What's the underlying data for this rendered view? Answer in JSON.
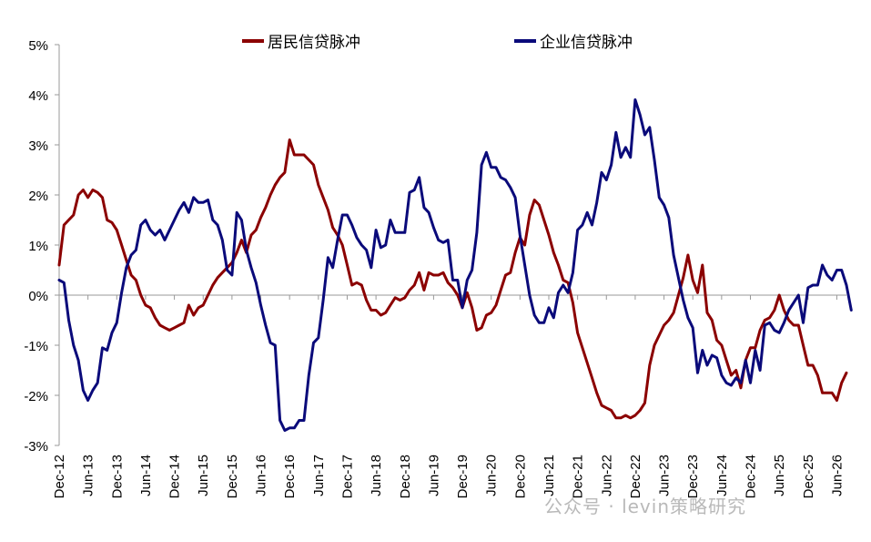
{
  "chart_data": {
    "type": "line",
    "title": "",
    "xlabel": "",
    "ylabel": "",
    "ylim": [
      -3,
      5
    ],
    "y_ticks": [
      "5%",
      "4%",
      "3%",
      "2%",
      "1%",
      "0%",
      "-1%",
      "-2%",
      "-3%"
    ],
    "x_ticks": [
      "Dec-12",
      "Jun-13",
      "Dec-13",
      "Jun-14",
      "Dec-14",
      "Jun-15",
      "Dec-15",
      "Jun-16",
      "Dec-16",
      "Jun-17",
      "Dec-17",
      "Jun-18",
      "Dec-18",
      "Jun-19",
      "Dec-19",
      "Jun-20",
      "Dec-20",
      "Jun-21",
      "Dec-21",
      "Jun-22",
      "Dec-22",
      "Jun-23",
      "Dec-23",
      "Jun-24",
      "Dec-24",
      "Jun-25",
      "Dec-25",
      "Jun-26"
    ],
    "legend_position": "top",
    "grid": false,
    "x_start": "Dec-12",
    "x_step": "1 month",
    "series": [
      {
        "name": "居民信贷脉冲",
        "color": "#8B0000",
        "values": [
          0.6,
          1.4,
          1.5,
          1.6,
          2.0,
          2.1,
          1.95,
          2.1,
          2.05,
          1.95,
          1.5,
          1.45,
          1.3,
          1.0,
          0.7,
          0.4,
          0.3,
          0.0,
          -0.2,
          -0.25,
          -0.45,
          -0.6,
          -0.65,
          -0.7,
          -0.65,
          -0.6,
          -0.55,
          -0.2,
          -0.4,
          -0.25,
          -0.2,
          0.0,
          0.2,
          0.35,
          0.45,
          0.55,
          0.65,
          0.85,
          1.1,
          0.85,
          1.2,
          1.3,
          1.55,
          1.75,
          2.0,
          2.2,
          2.35,
          2.45,
          3.1,
          2.8,
          2.8,
          2.8,
          2.7,
          2.6,
          2.2,
          1.95,
          1.7,
          1.35,
          1.2,
          1.0,
          0.6,
          0.2,
          0.25,
          0.2,
          -0.1,
          -0.3,
          -0.3,
          -0.4,
          -0.35,
          -0.2,
          -0.05,
          -0.1,
          -0.05,
          0.1,
          0.2,
          0.45,
          0.1,
          0.45,
          0.4,
          0.4,
          0.45,
          0.25,
          0.15,
          0.0,
          -0.25,
          0.05,
          -0.25,
          -0.7,
          -0.65,
          -0.4,
          -0.35,
          -0.2,
          0.1,
          0.4,
          0.45,
          0.85,
          1.15,
          1.0,
          1.6,
          1.9,
          1.8,
          1.5,
          1.2,
          0.85,
          0.6,
          0.3,
          0.25,
          -0.15,
          -0.75,
          -1.05,
          -1.35,
          -1.65,
          -1.95,
          -2.2,
          -2.25,
          -2.3,
          -2.45,
          -2.45,
          -2.4,
          -2.45,
          -2.4,
          -2.3,
          -2.15,
          -1.4,
          -1.0,
          -0.8,
          -0.6,
          -0.5,
          -0.35,
          0.0,
          0.35,
          0.8,
          0.3,
          0.05,
          0.6,
          -0.35,
          -0.5,
          -0.9,
          -1.0,
          -1.3,
          -1.6,
          -1.5,
          -1.85,
          -1.3,
          -1.05,
          -1.05,
          -0.7,
          -0.5,
          -0.45,
          -0.3,
          0.0,
          -0.3,
          -0.5,
          -0.6,
          -0.6,
          -1.0,
          -1.4,
          -1.4,
          -1.6,
          -1.95,
          -1.95,
          -1.95,
          -2.1,
          -1.75,
          -1.55
        ]
      },
      {
        "name": "企业信贷脉冲",
        "color": "#0A0A7A",
        "values": [
          0.3,
          0.25,
          -0.5,
          -1.0,
          -1.3,
          -1.9,
          -2.1,
          -1.9,
          -1.75,
          -1.05,
          -1.1,
          -0.75,
          -0.55,
          0.05,
          0.55,
          0.8,
          0.9,
          1.4,
          1.5,
          1.3,
          1.2,
          1.3,
          1.1,
          1.3,
          1.5,
          1.7,
          1.85,
          1.65,
          1.95,
          1.85,
          1.85,
          1.9,
          1.5,
          1.4,
          1.1,
          0.5,
          0.4,
          1.65,
          1.5,
          0.9,
          0.55,
          0.25,
          -0.2,
          -0.6,
          -0.95,
          -1.0,
          -2.5,
          -2.7,
          -2.65,
          -2.65,
          -2.5,
          -2.5,
          -1.6,
          -0.95,
          -0.85,
          -0.1,
          0.75,
          0.55,
          1.1,
          1.6,
          1.6,
          1.4,
          1.15,
          1.0,
          0.9,
          0.55,
          1.3,
          0.95,
          1.0,
          1.5,
          1.25,
          1.25,
          1.25,
          2.05,
          2.1,
          2.35,
          1.75,
          1.65,
          1.35,
          1.1,
          1.05,
          1.1,
          0.3,
          0.3,
          -0.25,
          0.3,
          0.5,
          1.25,
          2.6,
          2.85,
          2.55,
          2.55,
          2.35,
          2.3,
          2.15,
          1.95,
          1.2,
          0.6,
          0.0,
          -0.4,
          -0.55,
          -0.55,
          -0.25,
          -0.45,
          0.05,
          0.2,
          0.05,
          0.45,
          1.3,
          1.4,
          1.65,
          1.4,
          1.85,
          2.45,
          2.3,
          2.6,
          3.25,
          2.75,
          2.95,
          2.75,
          3.9,
          3.6,
          3.2,
          3.35,
          2.7,
          1.95,
          1.8,
          1.55,
          0.8,
          0.35,
          -0.1,
          -0.45,
          -0.65,
          -1.55,
          -1.1,
          -1.4,
          -1.2,
          -1.25,
          -1.6,
          -1.75,
          -1.8,
          -1.65,
          -1.75,
          -1.3,
          -1.75,
          -1.1,
          -1.5,
          -0.6,
          -0.55,
          -0.7,
          -0.75,
          -0.55,
          -0.3,
          -0.15,
          0.0,
          -0.55,
          0.15,
          0.2,
          0.2,
          0.6,
          0.4,
          0.3,
          0.5,
          0.5,
          0.2,
          -0.3
        ]
      }
    ]
  },
  "watermark": "公众号 · levin策略研究"
}
